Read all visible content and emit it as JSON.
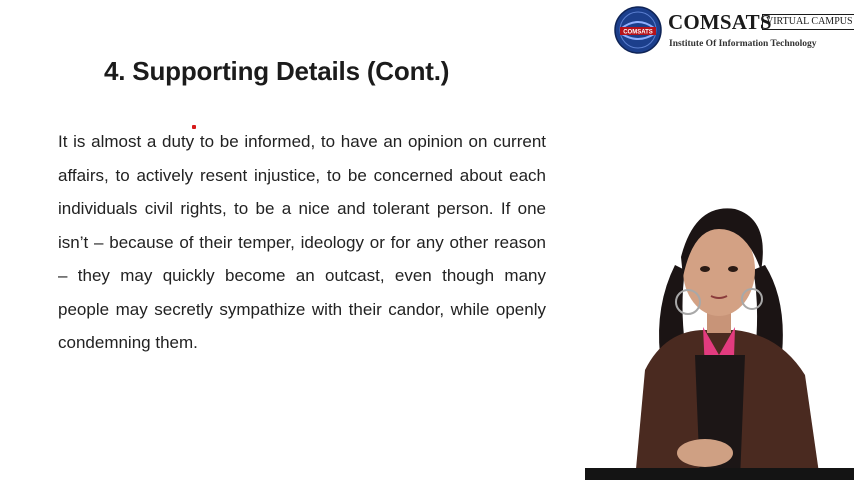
{
  "logo": {
    "brand": "COMSATS",
    "badge": "VIRTUAL CAMPUS",
    "tagline": "Institute Of Information Technology",
    "seal_text": "COMSATS"
  },
  "slide": {
    "title": "4. Supporting Details (Cont.)",
    "paragraph": "It is almost a duty to be informed, to have an opinion on current affairs, to actively resent injustice, to be concerned about each individuals civil rights, to be a nice and tolerant person. If one isn’t – because of their temper, ideology or for any other reason – they may quickly become an outcast, even though many people may secretly sympathize with their candor, while openly condemning them."
  },
  "colors": {
    "background": "#ffffff",
    "seal_blue": "#1c3f8c",
    "pointer_red": "#d61a1a",
    "jacket": "#4a2a20",
    "scarf": "#e23b7f"
  }
}
